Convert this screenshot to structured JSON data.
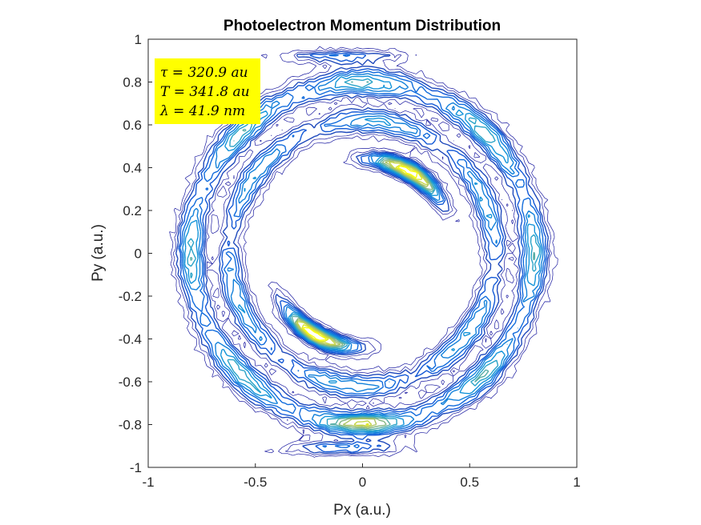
{
  "chart_data": {
    "type": "contour",
    "title": "Photoelectron Momentum Distribution",
    "xlabel": "Px (a.u.)",
    "ylabel": "Py (a.u.)",
    "xlim": [
      -1,
      1
    ],
    "ylim": [
      -1,
      1
    ],
    "xticks": [
      -1,
      -0.5,
      0,
      0.5,
      1
    ],
    "yticks": [
      -1,
      -0.8,
      -0.6,
      -0.4,
      -0.2,
      0,
      0.2,
      0.4,
      0.6,
      0.8,
      1
    ],
    "xtick_labels": [
      "-1",
      "-0.5",
      "0",
      "0.5",
      "1"
    ],
    "ytick_labels": [
      "-1",
      "-0.8",
      "-0.6",
      "-0.4",
      "-0.2",
      "0",
      "0.2",
      "0.4",
      "0.6",
      "0.8",
      "1"
    ],
    "grid": false,
    "colormap": "parula",
    "annotation": {
      "lines": [
        "τ = 320.9 au",
        "T = 341.8 au",
        "λ = 41.9 nm"
      ],
      "background": "#ffff00"
    },
    "features": [
      {
        "kind": "inner-arc-upper",
        "center": [
          0.15,
          0.41
        ],
        "arc_deg": [
          45,
          100
        ],
        "radius": 0.44,
        "peak": 1.0
      },
      {
        "kind": "inner-arc-lower",
        "center": [
          -0.15,
          -0.41
        ],
        "arc_deg": [
          225,
          280
        ],
        "radius": 0.44,
        "peak": 1.0
      },
      {
        "kind": "outer-ring",
        "radius": 0.8,
        "peak": 0.55
      },
      {
        "kind": "middle-ring",
        "radius": 0.62,
        "peak": 0.45
      }
    ],
    "colors": {
      "low": "#352a87",
      "mid": "#0f9ed8",
      "high": "#f9fb0e",
      "contour_line": "#1a1aa0"
    }
  }
}
